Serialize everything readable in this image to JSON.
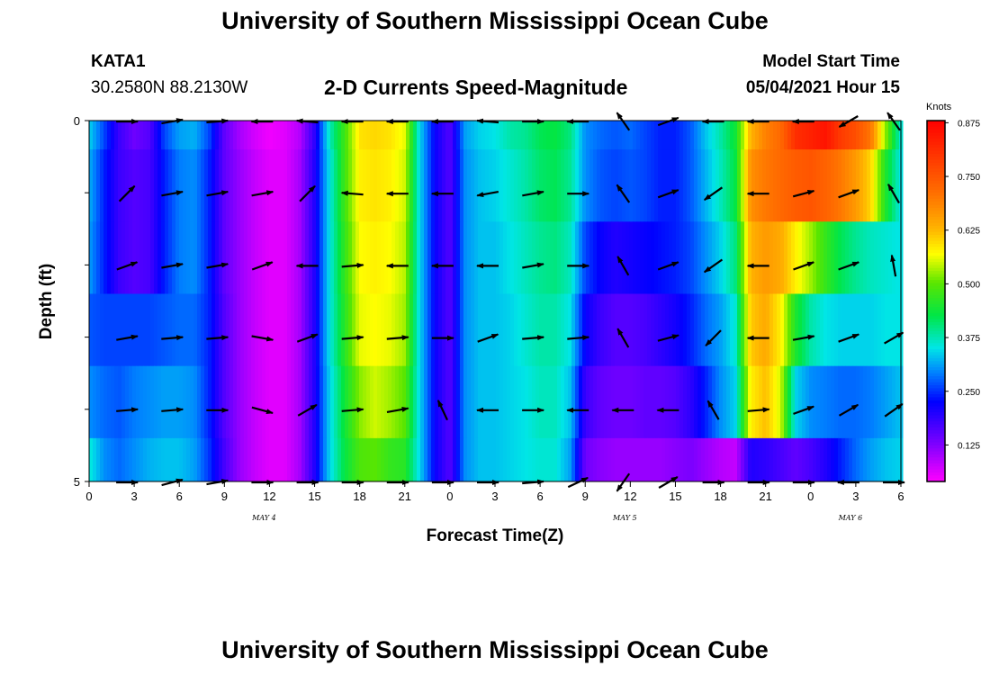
{
  "header": {
    "title": "University of Southern Mississippi Ocean Cube",
    "station_id": "KATA1",
    "coordinates": "30.2580N  88.2130W",
    "subtitle": "2-D Currents Speed-Magnitude",
    "model_start_label": "Model Start Time",
    "model_start_value": "05/04/2021 Hour 15"
  },
  "footer": {
    "title": "University of Southern Mississippi Ocean Cube"
  },
  "chart_data": {
    "type": "heatmap",
    "title": "2-D Currents Speed-Magnitude",
    "xlabel": "Forecast Time(Z)",
    "ylabel": "Depth (ft)",
    "colorbar_label": "Knots",
    "colorbar_ticks": [
      "0.875",
      "0.750",
      "0.625",
      "0.500",
      "0.375",
      "0.250",
      "0.125"
    ],
    "colorbar_range": [
      0.04,
      0.88
    ],
    "y_ticks": [
      "0",
      "5"
    ],
    "ylim": [
      0,
      5
    ],
    "x_tick_labels": [
      "0",
      "3",
      "6",
      "9",
      "12",
      "15",
      "18",
      "21",
      "0",
      "3",
      "6",
      "9",
      "12",
      "15",
      "18",
      "21",
      "0",
      "3",
      "6"
    ],
    "x_range_hours": [
      0,
      54
    ],
    "day_labels": [
      {
        "text": "MAY 4",
        "hour": 12
      },
      {
        "text": "MAY 5",
        "hour": 36
      },
      {
        "text": "MAY 6",
        "hour": 51
      }
    ],
    "depth_bands": [
      "0-1 ft",
      "1-2 ft",
      "2-3 ft",
      "3-4 ft",
      "4-5 ft"
    ],
    "speed_anchor_hours": [
      0,
      1,
      2,
      3,
      4,
      5,
      6,
      7,
      8,
      9,
      10,
      11,
      12,
      13,
      14,
      15,
      16,
      17,
      18,
      19,
      20,
      21,
      22,
      23,
      24,
      25,
      26,
      27,
      28,
      29,
      30,
      31,
      32,
      33,
      34,
      35,
      36,
      37,
      38,
      39,
      40,
      41,
      42,
      43,
      44,
      45,
      46,
      47,
      48,
      49,
      50,
      51,
      52,
      53,
      54
    ],
    "speed": [
      [
        0.34,
        0.26,
        0.18,
        0.14,
        0.16,
        0.26,
        0.31,
        0.32,
        0.26,
        0.15,
        0.1,
        0.07,
        0.05,
        0.06,
        0.09,
        0.19,
        0.37,
        0.48,
        0.59,
        0.6,
        0.59,
        0.56,
        0.34,
        0.22,
        0.16,
        0.31,
        0.34,
        0.35,
        0.38,
        0.39,
        0.42,
        0.43,
        0.4,
        0.3,
        0.28,
        0.27,
        0.28,
        0.26,
        0.24,
        0.24,
        0.27,
        0.33,
        0.38,
        0.44,
        0.63,
        0.69,
        0.72,
        0.81,
        0.83,
        0.85,
        0.79,
        0.76,
        0.7,
        0.52,
        0.36
      ],
      [
        0.32,
        0.24,
        0.18,
        0.16,
        0.17,
        0.24,
        0.29,
        0.3,
        0.24,
        0.15,
        0.11,
        0.08,
        0.06,
        0.06,
        0.1,
        0.2,
        0.35,
        0.48,
        0.58,
        0.59,
        0.58,
        0.55,
        0.34,
        0.22,
        0.16,
        0.3,
        0.33,
        0.34,
        0.36,
        0.38,
        0.41,
        0.42,
        0.39,
        0.3,
        0.27,
        0.26,
        0.27,
        0.26,
        0.24,
        0.24,
        0.27,
        0.32,
        0.37,
        0.43,
        0.67,
        0.7,
        0.72,
        0.74,
        0.75,
        0.73,
        0.7,
        0.66,
        0.6,
        0.45,
        0.35
      ],
      [
        0.31,
        0.24,
        0.18,
        0.16,
        0.17,
        0.24,
        0.29,
        0.3,
        0.24,
        0.15,
        0.11,
        0.08,
        0.06,
        0.06,
        0.1,
        0.2,
        0.35,
        0.47,
        0.57,
        0.58,
        0.57,
        0.54,
        0.34,
        0.22,
        0.16,
        0.3,
        0.33,
        0.33,
        0.35,
        0.37,
        0.39,
        0.4,
        0.37,
        0.26,
        0.22,
        0.2,
        0.21,
        0.22,
        0.23,
        0.24,
        0.26,
        0.3,
        0.34,
        0.4,
        0.63,
        0.66,
        0.64,
        0.58,
        0.53,
        0.47,
        0.42,
        0.39,
        0.37,
        0.36,
        0.35
      ],
      [
        0.27,
        0.26,
        0.26,
        0.26,
        0.26,
        0.27,
        0.28,
        0.28,
        0.24,
        0.16,
        0.11,
        0.08,
        0.06,
        0.06,
        0.1,
        0.2,
        0.35,
        0.46,
        0.56,
        0.57,
        0.56,
        0.53,
        0.34,
        0.22,
        0.16,
        0.3,
        0.33,
        0.33,
        0.34,
        0.36,
        0.38,
        0.38,
        0.35,
        0.22,
        0.18,
        0.16,
        0.16,
        0.17,
        0.19,
        0.21,
        0.24,
        0.28,
        0.31,
        0.36,
        0.61,
        0.64,
        0.58,
        0.45,
        0.38,
        0.35,
        0.34,
        0.34,
        0.34,
        0.35,
        0.35
      ],
      [
        0.3,
        0.28,
        0.27,
        0.29,
        0.3,
        0.31,
        0.31,
        0.3,
        0.24,
        0.16,
        0.11,
        0.08,
        0.06,
        0.06,
        0.1,
        0.2,
        0.34,
        0.44,
        0.52,
        0.55,
        0.53,
        0.5,
        0.34,
        0.22,
        0.16,
        0.3,
        0.33,
        0.33,
        0.34,
        0.35,
        0.37,
        0.37,
        0.33,
        0.18,
        0.15,
        0.14,
        0.14,
        0.15,
        0.15,
        0.16,
        0.19,
        0.24,
        0.3,
        0.34,
        0.58,
        0.62,
        0.55,
        0.34,
        0.3,
        0.29,
        0.28,
        0.28,
        0.29,
        0.31,
        0.33
      ]
    ],
    "bottom_band_speed": [
      0.36,
      0.3,
      0.28,
      0.3,
      0.32,
      0.33,
      0.33,
      0.31,
      0.25,
      0.17,
      0.11,
      0.08,
      0.06,
      0.06,
      0.1,
      0.2,
      0.34,
      0.43,
      0.49,
      0.5,
      0.47,
      0.46,
      0.34,
      0.22,
      0.16,
      0.3,
      0.33,
      0.33,
      0.34,
      0.35,
      0.36,
      0.36,
      0.31,
      0.14,
      0.12,
      0.11,
      0.11,
      0.11,
      0.11,
      0.12,
      0.13,
      0.11,
      0.09,
      0.08,
      0.2,
      0.19,
      0.17,
      0.15,
      0.17,
      0.2,
      0.24,
      0.28,
      0.31,
      0.33,
      0.34
    ],
    "vector_hours": [
      3,
      6,
      9,
      12,
      15,
      18,
      21,
      24,
      27,
      30,
      33,
      36,
      39,
      42,
      45,
      48,
      51,
      54
    ],
    "vector_depths_ft": [
      0,
      1,
      2,
      3,
      4,
      5
    ],
    "vector_angles_deg": [
      [
        0,
        -10,
        -5,
        180,
        185,
        180,
        180,
        180,
        185,
        0,
        180,
        -125,
        -20,
        180,
        180,
        180,
        150,
        -125
      ],
      [
        -45,
        -10,
        -10,
        -10,
        -45,
        -175,
        180,
        180,
        170,
        -10,
        0,
        -125,
        -20,
        145,
        180,
        -15,
        -20,
        -120
      ],
      [
        -20,
        -10,
        -10,
        -20,
        180,
        -5,
        180,
        180,
        180,
        -10,
        0,
        -120,
        -20,
        145,
        180,
        -20,
        -20,
        -100
      ],
      [
        -10,
        -5,
        -5,
        10,
        -20,
        -5,
        -5,
        0,
        -20,
        -5,
        -5,
        -120,
        -15,
        135,
        180,
        -10,
        -20,
        -30
      ],
      [
        -5,
        -5,
        0,
        15,
        -30,
        -5,
        -10,
        -115,
        180,
        0,
        180,
        180,
        180,
        -120,
        -5,
        -20,
        -30,
        -35
      ],
      [
        0,
        -15,
        -10,
        0,
        0,
        0,
        0,
        0,
        0,
        -5,
        -25,
        125,
        -30,
        0,
        0,
        0,
        180,
        0
      ]
    ]
  }
}
